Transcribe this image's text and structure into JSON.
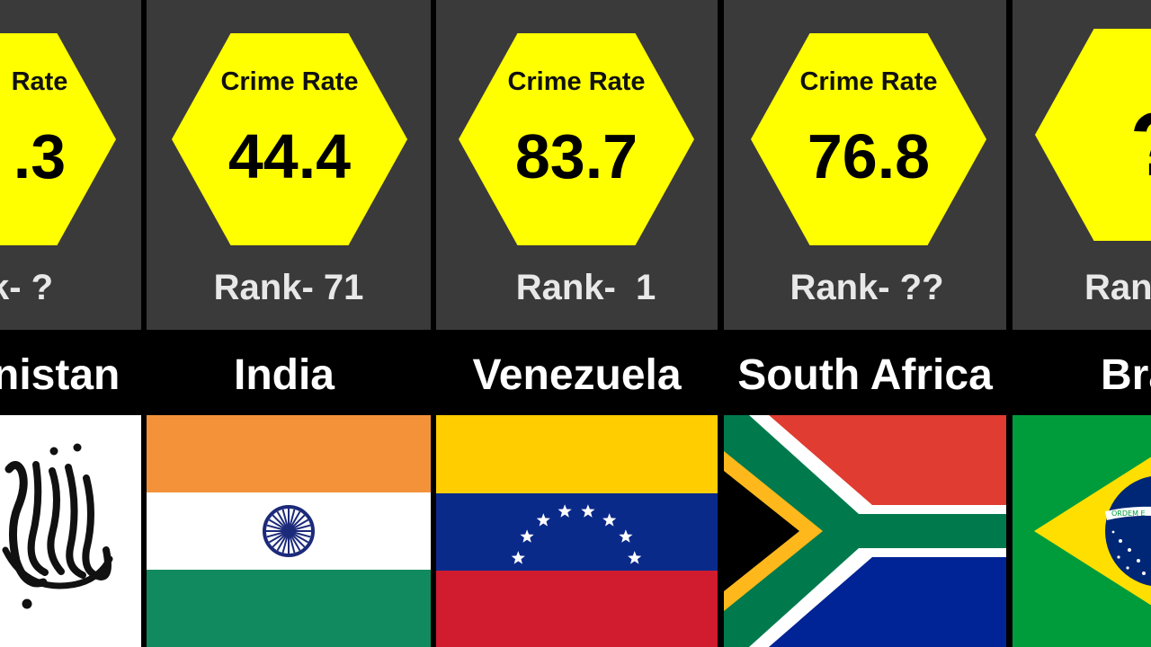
{
  "columns": [
    {
      "country": "nistan",
      "crime_rate_label": "Rate",
      "crime_rate_value": ".3",
      "rank": "k- ?",
      "flag_icon": "afghanistan-flag-icon"
    },
    {
      "country": "India",
      "crime_rate_label": "Crime Rate",
      "crime_rate_value": "44.4",
      "rank": "Rank- 71",
      "flag_icon": "india-flag-icon"
    },
    {
      "country": "Venezuela",
      "crime_rate_label": "Crime Rate",
      "crime_rate_value": "83.7",
      "rank": "Rank-  1",
      "flag_icon": "venezuela-flag-icon"
    },
    {
      "country": "South Africa",
      "crime_rate_label": "Crime Rate",
      "crime_rate_value": "76.8",
      "rank": "Rank- ??",
      "flag_icon": "south-africa-flag-icon"
    },
    {
      "country": "Bra",
      "crime_rate_label": "",
      "crime_rate_value": "?",
      "rank": "Ran",
      "flag_icon": "brazil-flag-icon",
      "flag_banner_text": "ORDEM E"
    }
  ],
  "colors": {
    "panel": "#3b3a3a",
    "hexagon": "#ffff00",
    "background": "#000000"
  }
}
